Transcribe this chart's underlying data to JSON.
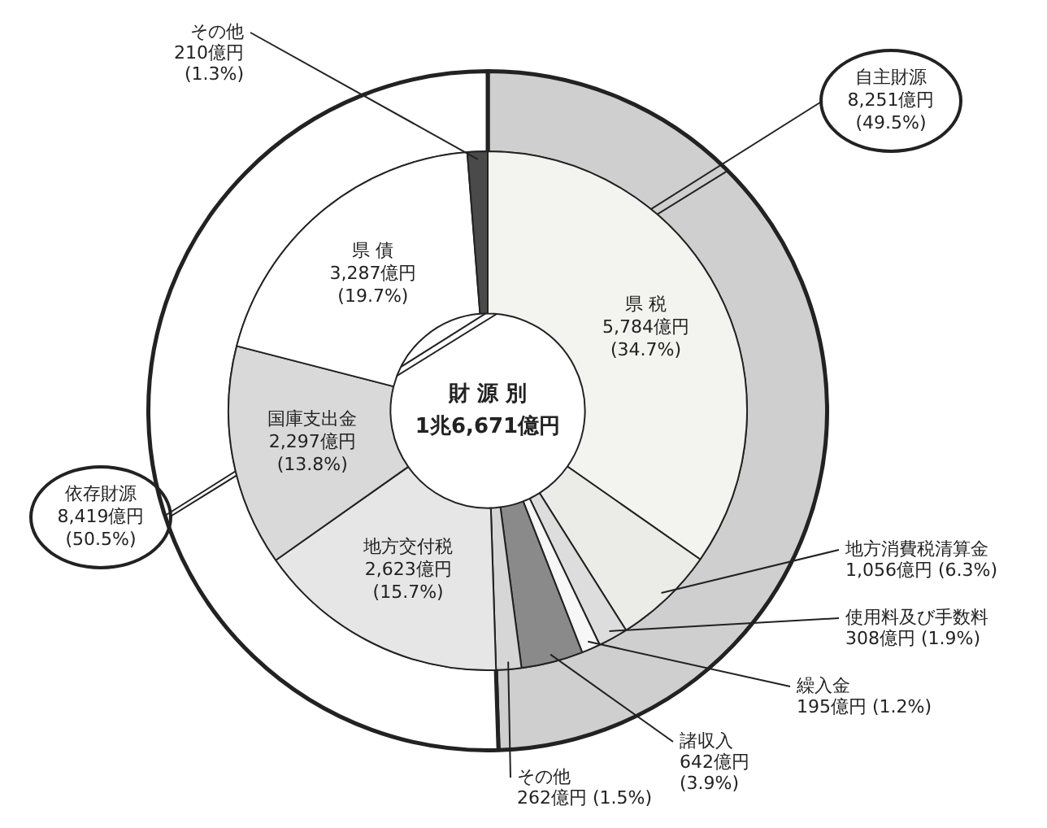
{
  "chart_data": [
    {
      "type": "donut",
      "legend": false,
      "categories": [
        "自主財源",
        "依存財源"
      ],
      "values": [
        8251,
        8419
      ],
      "colors": [
        "#cfcfcf",
        "#ffffff"
      ],
      "value_labels": [
        "8,251億円\n(49.5%)",
        "8,419億円\n(50.5%)"
      ]
    },
    {
      "type": "donut",
      "title": "財 源 別",
      "subtitle": "1兆6,671億円",
      "legend": false,
      "categories": [
        "県 税",
        "地方消費税清算金",
        "使用料及び手数料",
        "繰入金",
        "諸収入",
        "その他",
        "地方交付税",
        "国庫支出金",
        "県 債",
        "その他"
      ],
      "values": [
        5784,
        1056,
        308,
        195,
        642,
        262,
        2623,
        2297,
        3287,
        210
      ],
      "colors": [
        "#f3f3ef",
        "#ebebe8",
        "#dddddd",
        "#f7f7f7",
        "#8a8a8a",
        "#d6d6d6",
        "#e6e6e6",
        "#d9d9d9",
        "#ffffff",
        "#4a4a4a"
      ],
      "value_labels": [
        "5,784億円\n(34.7%)",
        "1,056億円 (6.3%)",
        "308億円 (1.9%)",
        "195億円 (1.2%)",
        "642億円\n(3.9%)",
        "262億円 (1.5%)",
        "2,623億円\n(15.7%)",
        "2,297億円\n(13.8%)",
        "3,287億円\n(19.7%)",
        "210億円\n(1.3%)"
      ]
    }
  ]
}
